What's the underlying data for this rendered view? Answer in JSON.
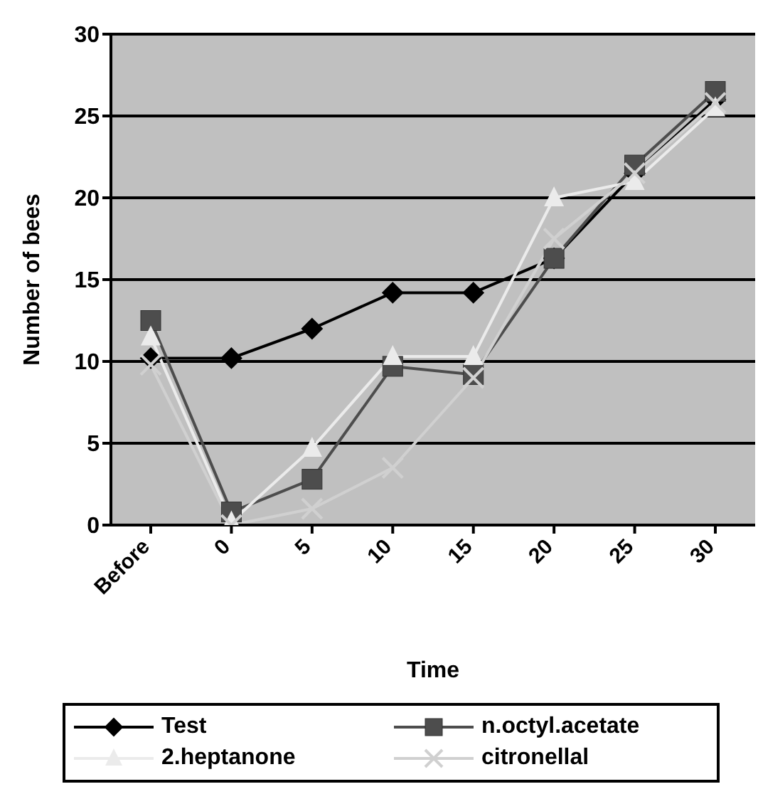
{
  "chart_data": {
    "type": "line",
    "xlabel": "Time",
    "ylabel": "Number of bees",
    "categories": [
      "Before",
      "0",
      "5",
      "10",
      "15",
      "20",
      "25",
      "30"
    ],
    "series": [
      {
        "name": "Test",
        "color": "#000000",
        "marker": "diamond",
        "values": [
          10.2,
          10.2,
          12,
          14.2,
          14.2,
          16.3,
          21.5,
          26
        ]
      },
      {
        "name": "n.octyl.acetate",
        "color": "#4d4d4d",
        "marker": "square",
        "values": [
          12.5,
          0.8,
          2.8,
          9.7,
          9.2,
          16.3,
          22,
          26.5
        ]
      },
      {
        "name": "2.heptanone",
        "color": "#ebebeb",
        "marker": "triangle",
        "values": [
          11.5,
          0.2,
          4.7,
          10.3,
          10.3,
          20,
          21,
          25.5
        ]
      },
      {
        "name": "citronellal",
        "color": "#d0d0d0",
        "marker": "cross",
        "values": [
          9.8,
          0,
          1,
          3.5,
          9,
          17.5,
          21.5,
          25.8
        ]
      }
    ],
    "ylim": [
      0,
      30
    ],
    "yticks": [
      0,
      5,
      10,
      15,
      20,
      25,
      30
    ],
    "grid": "y",
    "legend": "bottom"
  }
}
